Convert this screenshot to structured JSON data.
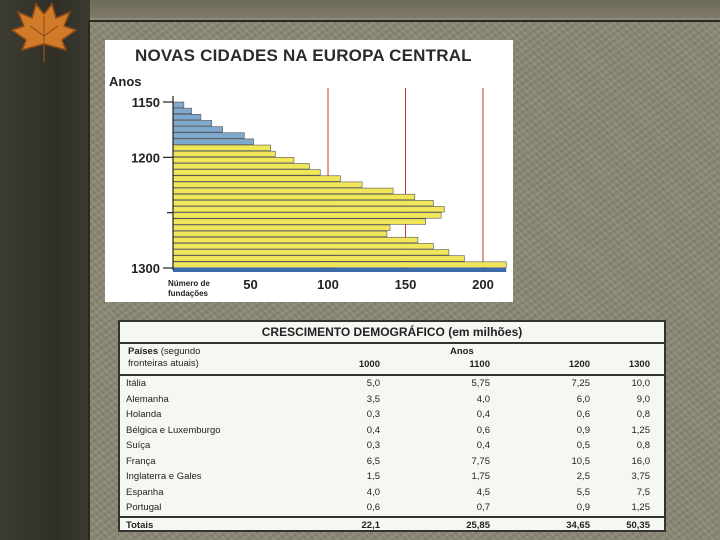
{
  "chart": {
    "title": "NOVAS CIDADES NA EUROPA CENTRAL",
    "y_axis_label": "Anos",
    "y_ticks": [
      "1150",
      "1200",
      "1300"
    ],
    "x_axis_label_line1": "Número de",
    "x_axis_label_line2": "fundações",
    "x_ticks": [
      "50",
      "100",
      "150",
      "200"
    ]
  },
  "chart_data": {
    "type": "bar",
    "title": "NOVAS CIDADES NA EUROPA CENTRAL",
    "ylabel": "Anos",
    "xlabel": "Número de fundações",
    "xlim": [
      0,
      215
    ],
    "ylim": [
      1150,
      1300
    ],
    "series": [
      {
        "values": [
          7,
          12,
          18,
          25,
          32,
          46,
          52,
          63,
          66,
          78,
          88,
          95,
          108,
          122,
          142,
          156,
          168,
          175,
          173,
          163,
          140,
          138,
          158,
          168,
          178,
          188,
          215
        ]
      }
    ]
  },
  "table": {
    "title": "CRESCIMENTO DEMOGRÁFICO (em milhões)",
    "col_country_label": "Países",
    "col_country_note1": "(segundo",
    "col_country_note2": "fronteiras atuais)",
    "years_label": "Anos",
    "years": [
      "1000",
      "1100",
      "1200",
      "1300"
    ],
    "rows": [
      {
        "country": "Itália",
        "values": [
          "5,0",
          "5,75",
          "7,25",
          "10,0"
        ]
      },
      {
        "country": "Alemanha",
        "values": [
          "3,5",
          "4,0",
          "6,0",
          "9,0"
        ]
      },
      {
        "country": "Holanda",
        "values": [
          "0,3",
          "0,4",
          "0,6",
          "0,8"
        ]
      },
      {
        "country": "Bélgica e Luxemburgo",
        "values": [
          "0,4",
          "0,6",
          "0,9",
          "1,25"
        ]
      },
      {
        "country": "Suíça",
        "values": [
          "0,3",
          "0,4",
          "0,5",
          "0,8"
        ]
      },
      {
        "country": "França",
        "values": [
          "6,5",
          "7,75",
          "10,5",
          "16,0"
        ]
      },
      {
        "country": "Inglaterra e Gales",
        "values": [
          "1,5",
          "1,75",
          "2,5",
          "3,75"
        ]
      },
      {
        "country": "Espanha",
        "values": [
          "4,0",
          "4,5",
          "5,5",
          "7,5"
        ]
      },
      {
        "country": "Portugal",
        "values": [
          "0,6",
          "0,7",
          "0,9",
          "1,25"
        ]
      }
    ],
    "totals_label": "Totais",
    "totals": [
      "22,1",
      "25,85",
      "34,65",
      "50,35"
    ]
  },
  "colors": {
    "blue_bars": "#7fa8cf",
    "yellow_bars": "#efe65a",
    "grid_red": "#c0392b"
  }
}
